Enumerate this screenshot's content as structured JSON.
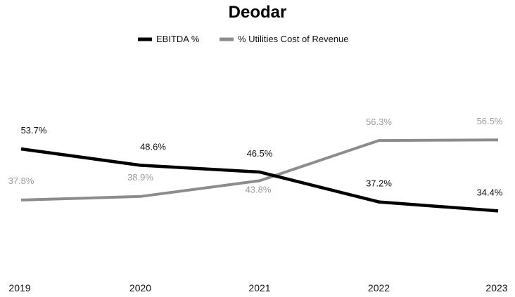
{
  "chart_data": {
    "type": "line",
    "title": "Deodar",
    "categories": [
      "2019",
      "2020",
      "2021",
      "2022",
      "2023"
    ],
    "ylim": [
      0,
      100
    ],
    "grid": false,
    "legend_position": "top-center",
    "series": [
      {
        "name": "EBITDA %",
        "color": "#000000",
        "values": [
          53.7,
          48.6,
          46.5,
          37.2,
          34.4
        ],
        "labels": [
          "53.7%",
          "48.6%",
          "46.5%",
          "37.2%",
          "34.4%"
        ]
      },
      {
        "name": "% Utilities Cost of Revenue",
        "color": "#8c8c8c",
        "values": [
          37.8,
          38.9,
          43.8,
          56.3,
          56.5
        ],
        "labels": [
          "37.8%",
          "38.9%",
          "43.8%",
          "56.3%",
          "56.5%"
        ]
      }
    ]
  }
}
